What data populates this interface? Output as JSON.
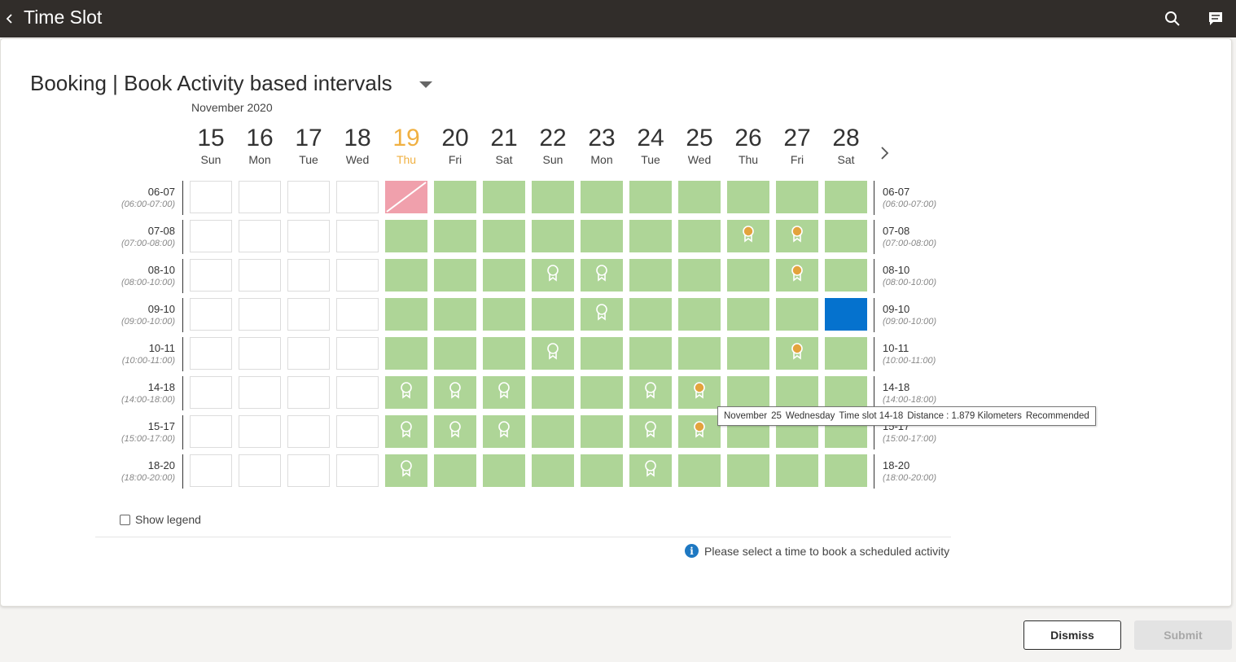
{
  "header": {
    "title": "Time Slot",
    "back_icon": "chevron-left-icon",
    "search_icon": "search-icon",
    "chat_icon": "chat-icon"
  },
  "booking": {
    "title": "Booking | Book Activity based intervals"
  },
  "calendar": {
    "month": "November 2020",
    "today": "19",
    "days": [
      {
        "num": "15",
        "name": "Sun"
      },
      {
        "num": "16",
        "name": "Mon"
      },
      {
        "num": "17",
        "name": "Tue"
      },
      {
        "num": "18",
        "name": "Wed"
      },
      {
        "num": "19",
        "name": "Thu"
      },
      {
        "num": "20",
        "name": "Fri"
      },
      {
        "num": "21",
        "name": "Sat"
      },
      {
        "num": "22",
        "name": "Sun"
      },
      {
        "num": "23",
        "name": "Mon"
      },
      {
        "num": "24",
        "name": "Tue"
      },
      {
        "num": "25",
        "name": "Wed"
      },
      {
        "num": "26",
        "name": "Thu"
      },
      {
        "num": "27",
        "name": "Fri"
      },
      {
        "num": "28",
        "name": "Sat"
      }
    ],
    "slots": [
      {
        "short": "06-07",
        "long": "(06:00-07:00)",
        "cells": [
          "E",
          "E",
          "E",
          "E",
          "X",
          "A",
          "A",
          "A",
          "A",
          "A",
          "A",
          "A",
          "A",
          "A"
        ]
      },
      {
        "short": "07-08",
        "long": "(07:00-08:00)",
        "cells": [
          "E",
          "E",
          "E",
          "E",
          "A",
          "A",
          "A",
          "A",
          "A",
          "A",
          "A",
          "G",
          "G",
          "A"
        ]
      },
      {
        "short": "08-10",
        "long": "(08:00-10:00)",
        "cells": [
          "E",
          "E",
          "E",
          "E",
          "A",
          "A",
          "A",
          "W",
          "W",
          "A",
          "A",
          "A",
          "G",
          "A"
        ]
      },
      {
        "short": "09-10",
        "long": "(09:00-10:00)",
        "cells": [
          "E",
          "E",
          "E",
          "E",
          "A",
          "A",
          "A",
          "A",
          "W",
          "A",
          "A",
          "A",
          "A",
          "S"
        ]
      },
      {
        "short": "10-11",
        "long": "(10:00-11:00)",
        "cells": [
          "E",
          "E",
          "E",
          "E",
          "A",
          "A",
          "A",
          "W",
          "A",
          "A",
          "A",
          "A",
          "G",
          "A"
        ]
      },
      {
        "short": "14-18",
        "long": "(14:00-18:00)",
        "cells": [
          "E",
          "E",
          "E",
          "E",
          "W",
          "W",
          "W",
          "A",
          "A",
          "W",
          "G",
          "A",
          "A",
          "A"
        ]
      },
      {
        "short": "15-17",
        "long": "(15:00-17:00)",
        "cells": [
          "E",
          "E",
          "E",
          "E",
          "W",
          "W",
          "W",
          "A",
          "A",
          "W",
          "G",
          "A",
          "A",
          "A"
        ]
      },
      {
        "short": "18-20",
        "long": "(18:00-20:00)",
        "cells": [
          "E",
          "E",
          "E",
          "E",
          "W",
          "A",
          "A",
          "A",
          "A",
          "W",
          "A",
          "A",
          "A",
          "A"
        ]
      }
    ],
    "cell_legend": {
      "E": "unavailable",
      "A": "available",
      "X": "blocked",
      "S": "selected",
      "W": "recommended",
      "G": "recommended-gold"
    },
    "colors": {
      "available": "#aed597",
      "blocked": "#f0a0ac",
      "selected": "#0572ce",
      "today": "#f0b041",
      "medal_gold": "#e3a33d",
      "medal_white": "#ffffff"
    }
  },
  "tooltip": {
    "month": "November",
    "day": "25",
    "weekday": "Wednesday",
    "slot": "Time slot 14-18",
    "distance": "Distance : 1.879 Kilometers",
    "status": "Recommended"
  },
  "legend": {
    "label": "Show legend",
    "checked": false
  },
  "info": {
    "icon": "info-icon",
    "text": "Please select a time to book a scheduled activity"
  },
  "actions": {
    "dismiss": "Dismiss",
    "submit": "Submit"
  }
}
